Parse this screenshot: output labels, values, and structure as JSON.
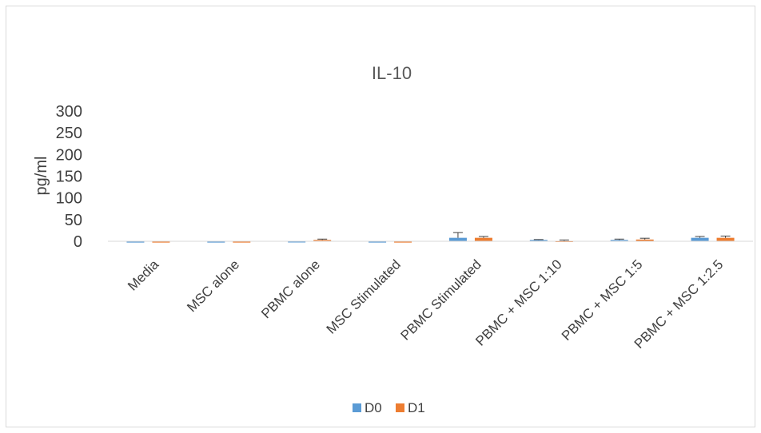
{
  "chart_data": {
    "type": "bar",
    "title": "IL-10",
    "xlabel": "",
    "ylabel": "pg/ml",
    "ylim": [
      0,
      300
    ],
    "yticks": [
      0,
      50,
      100,
      150,
      200,
      250,
      300
    ],
    "grid": false,
    "legend_position": "bottom",
    "categories": [
      "Media",
      "MSC alone",
      "PBMC alone",
      "MSC Stimulated",
      "PBMC Stimulated",
      "PBMC + MSC 1:10",
      "PBMC + MSC 1:5",
      "PBMC + MSC 1:2.5"
    ],
    "series": [
      {
        "name": "D0",
        "color": "#5B9BD5",
        "values": [
          -3,
          -3,
          0,
          -3,
          8,
          3,
          3,
          8
        ],
        "errors": [
          0,
          0,
          0,
          0,
          12,
          1,
          2,
          3
        ]
      },
      {
        "name": "D1",
        "color": "#ED7D31",
        "values": [
          -3,
          -3,
          3,
          -3,
          8,
          1,
          4,
          8
        ],
        "errors": [
          0,
          0,
          2,
          0,
          3,
          2,
          3,
          4
        ]
      }
    ]
  }
}
